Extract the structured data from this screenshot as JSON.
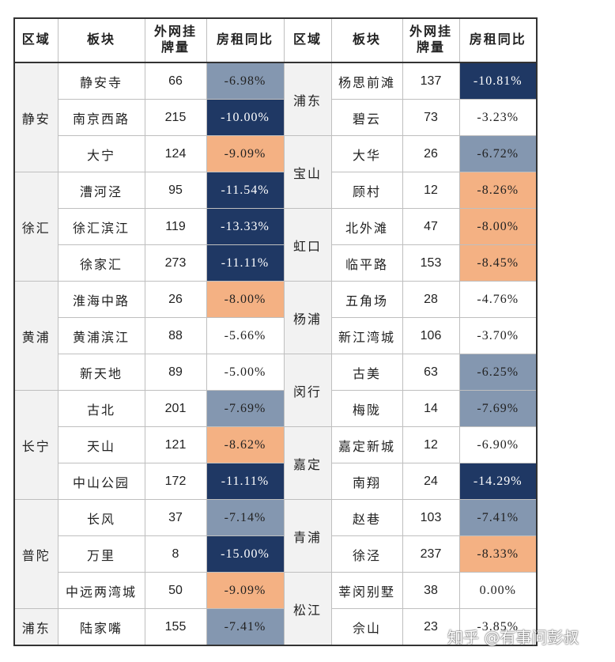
{
  "header": [
    "区域",
    "板块",
    "外网挂\n牌量",
    "房租同比",
    "区域",
    "板块",
    "外网挂\n牌量",
    "房租同比"
  ],
  "left": [
    {
      "district": "静安",
      "rows": [
        {
          "block": "静安寺",
          "count": 66,
          "change": "-6.98%",
          "color": "#8497b0"
        },
        {
          "block": "南京西路",
          "count": 215,
          "change": "-10.00%",
          "color": "#1f3864"
        },
        {
          "block": "大宁",
          "count": 124,
          "change": "-9.09%",
          "color": "#f4b183"
        }
      ]
    },
    {
      "district": "徐汇",
      "rows": [
        {
          "block": "漕河泾",
          "count": 95,
          "change": "-11.54%",
          "color": "#1f3864"
        },
        {
          "block": "徐汇滨江",
          "count": 119,
          "change": "-13.33%",
          "color": "#1f3864"
        },
        {
          "block": "徐家汇",
          "count": 273,
          "change": "-11.11%",
          "color": "#1f3864"
        }
      ]
    },
    {
      "district": "黄浦",
      "rows": [
        {
          "block": "淮海中路",
          "count": 26,
          "change": "-8.00%",
          "color": "#f4b183"
        },
        {
          "block": "黄浦滨江",
          "count": 88,
          "change": "-5.66%",
          "color": "#ffffff"
        },
        {
          "block": "新天地",
          "count": 89,
          "change": "-5.00%",
          "color": "#ffffff"
        }
      ]
    },
    {
      "district": "长宁",
      "rows": [
        {
          "block": "古北",
          "count": 201,
          "change": "-7.69%",
          "color": "#8497b0"
        },
        {
          "block": "天山",
          "count": 121,
          "change": "-8.62%",
          "color": "#f4b183"
        },
        {
          "block": "中山公园",
          "count": 172,
          "change": "-11.11%",
          "color": "#1f3864"
        }
      ]
    },
    {
      "district": "普陀",
      "rows": [
        {
          "block": "长风",
          "count": 37,
          "change": "-7.14%",
          "color": "#8497b0"
        },
        {
          "block": "万里",
          "count": 8,
          "change": "-15.00%",
          "color": "#1f3864"
        },
        {
          "block": "中远两湾城",
          "count": 50,
          "change": "-9.09%",
          "color": "#f4b183"
        }
      ]
    },
    {
      "district": "浦东",
      "rows": [
        {
          "block": "陆家嘴",
          "count": 155,
          "change": "-7.41%",
          "color": "#8497b0"
        }
      ]
    }
  ],
  "right": [
    {
      "district": "浦东",
      "rows": [
        {
          "block": "杨思前滩",
          "count": 137,
          "change": "-10.81%",
          "color": "#1f3864"
        },
        {
          "block": "碧云",
          "count": 73,
          "change": "-3.23%",
          "color": "#ffffff"
        }
      ]
    },
    {
      "district": "宝山",
      "rows": [
        {
          "block": "大华",
          "count": 26,
          "change": "-6.72%",
          "color": "#8497b0"
        },
        {
          "block": "顾村",
          "count": 12,
          "change": "-8.26%",
          "color": "#f4b183"
        }
      ]
    },
    {
      "district": "虹口",
      "rows": [
        {
          "block": "北外滩",
          "count": 47,
          "change": "-8.00%",
          "color": "#f4b183"
        },
        {
          "block": "临平路",
          "count": 153,
          "change": "-8.45%",
          "color": "#f4b183"
        }
      ]
    },
    {
      "district": "杨浦",
      "rows": [
        {
          "block": "五角场",
          "count": 28,
          "change": "-4.76%",
          "color": "#ffffff"
        },
        {
          "block": "新江湾城",
          "count": 106,
          "change": "-3.70%",
          "color": "#ffffff"
        }
      ]
    },
    {
      "district": "闵行",
      "rows": [
        {
          "block": "古美",
          "count": 63,
          "change": "-6.25%",
          "color": "#8497b0"
        },
        {
          "block": "梅陇",
          "count": 14,
          "change": "-7.69%",
          "color": "#8497b0"
        }
      ]
    },
    {
      "district": "嘉定",
      "rows": [
        {
          "block": "嘉定新城",
          "count": 12,
          "change": "-6.90%",
          "color": "#ffffff"
        },
        {
          "block": "南翔",
          "count": 24,
          "change": "-14.29%",
          "color": "#1f3864"
        }
      ]
    },
    {
      "district": "青浦",
      "rows": [
        {
          "block": "赵巷",
          "count": 103,
          "change": "-7.41%",
          "color": "#8497b0"
        },
        {
          "block": "徐泾",
          "count": 237,
          "change": "-8.33%",
          "color": "#f4b183"
        }
      ]
    },
    {
      "district": "松江",
      "rows": [
        {
          "block": "莘闵别墅",
          "count": 38,
          "change": "0.00%",
          "color": "#ffffff"
        },
        {
          "block": "佘山",
          "count": 23,
          "change": "-3.85%",
          "color": "#ffffff"
        }
      ]
    }
  ],
  "watermark": "知乎 @有事问彭叔"
}
